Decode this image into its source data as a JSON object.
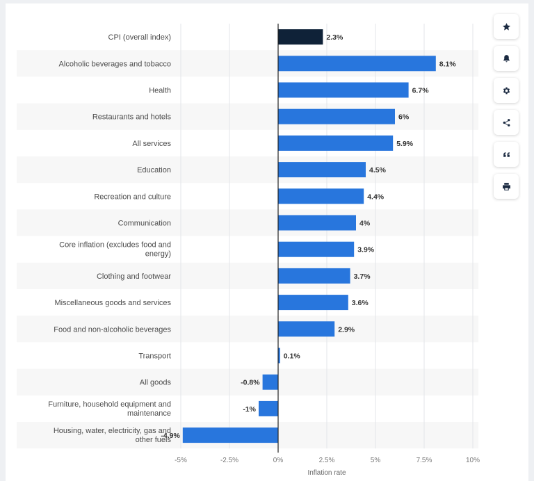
{
  "chart_data": {
    "type": "bar",
    "orientation": "horizontal",
    "categories": [
      "CPI (overall index)",
      "Alcoholic beverages and tobacco",
      "Health",
      "Restaurants and hotels",
      "All services",
      "Education",
      "Recreation and culture",
      "Communication",
      "Core inflation (excludes food and energy)",
      "Clothing and footwear",
      "Miscellaneous goods and services",
      "Food and non-alcoholic beverages",
      "Transport",
      "All goods",
      "Furniture, household equipment and maintenance",
      "Housing, water, electricity, gas and other fuels"
    ],
    "values": [
      2.3,
      8.1,
      6.7,
      6,
      5.9,
      4.5,
      4.4,
      4,
      3.9,
      3.7,
      3.6,
      2.9,
      0.1,
      -0.8,
      -1,
      -4.9
    ],
    "value_labels": [
      "2.3%",
      "8.1%",
      "6.7%",
      "6%",
      "5.9%",
      "4.5%",
      "4.4%",
      "4%",
      "3.9%",
      "3.7%",
      "3.6%",
      "2.9%",
      "0.1%",
      "-0.8%",
      "-1%",
      "-4.9%"
    ],
    "highlight_index": 0,
    "xlabel": "Inflation rate",
    "xlim": [
      -5,
      10
    ],
    "xticks": [
      -5,
      -2.5,
      0,
      2.5,
      5,
      7.5,
      10
    ],
    "xtick_labels": [
      "-5%",
      "-2.5%",
      "0%",
      "2.5%",
      "5%",
      "7.5%",
      "10%"
    ],
    "grid": true,
    "colors": {
      "bar": "#2876dd",
      "highlight": "#0f2238",
      "grid": "#e3e5e8",
      "stripe": "#f7f7f7",
      "text": "#4a4a4a",
      "label": "#333333"
    }
  },
  "toolbar": [
    {
      "icon": "star-icon",
      "name": "favorite-button"
    },
    {
      "icon": "bell-icon",
      "name": "notification-button"
    },
    {
      "icon": "gear-icon",
      "name": "settings-button"
    },
    {
      "icon": "share-icon",
      "name": "share-button"
    },
    {
      "icon": "quote-icon",
      "name": "cite-button"
    },
    {
      "icon": "print-icon",
      "name": "print-button"
    }
  ]
}
